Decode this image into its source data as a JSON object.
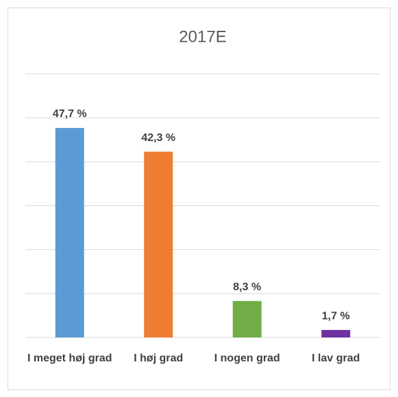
{
  "chart_data": {
    "type": "bar",
    "title": "2017E",
    "categories": [
      "I meget høj grad",
      "I høj grad",
      "I nogen grad",
      "I lav grad"
    ],
    "values": [
      47.7,
      42.3,
      8.3,
      1.7
    ],
    "value_labels": [
      "47,7 %",
      "42,3 %",
      "8,3 %",
      "1,7 %"
    ],
    "colors": [
      "#5b9bd5",
      "#ed7d31",
      "#70ad47",
      "#7030a0"
    ],
    "ylim": [
      0,
      60
    ],
    "yticks": [
      0,
      10,
      20,
      30,
      40,
      50,
      60
    ],
    "grid": true
  }
}
